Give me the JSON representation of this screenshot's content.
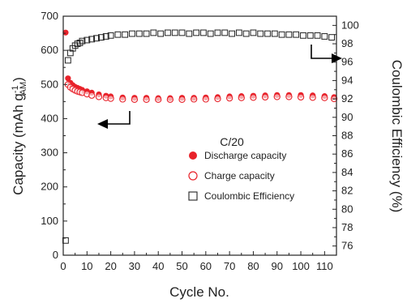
{
  "chart_data": {
    "type": "scatter",
    "xlabel": "Cycle No.",
    "ylabel_left": {
      "pre": "Capacity (mAh g",
      "sup": "-1",
      "sub": "AM",
      "post": ")"
    },
    "ylabel_right": "Coulombic Efficiency (%)",
    "xlim": [
      0,
      115
    ],
    "ylim_left": [
      0,
      700
    ],
    "ylim_right": [
      75,
      101
    ],
    "x_ticks": [
      0,
      10,
      20,
      30,
      40,
      50,
      60,
      70,
      80,
      90,
      100,
      110
    ],
    "x_tick_labels": [
      "0",
      "10",
      "20",
      "30",
      "40",
      "50",
      "60",
      "70",
      "80",
      "90",
      "100",
      "110"
    ],
    "y_left_ticks": [
      0,
      100,
      200,
      300,
      400,
      500,
      600,
      700
    ],
    "y_left_tick_labels": [
      "0",
      "100",
      "200",
      "300",
      "400",
      "500",
      "600",
      "700"
    ],
    "y_right_ticks": [
      76,
      78,
      80,
      82,
      84,
      86,
      88,
      90,
      92,
      94,
      96,
      98,
      100
    ],
    "y_right_tick_labels": [
      "76",
      "78",
      "80",
      "82",
      "84",
      "86",
      "88",
      "90",
      "92",
      "94",
      "96",
      "98",
      "100"
    ],
    "annotation": "C/20",
    "legend_position": "center-right",
    "grid": false,
    "colors": {
      "discharge": "#e8222a",
      "charge": "#e8222a",
      "ce": "#222222",
      "arrow": "#000000"
    },
    "series": [
      {
        "name": "Discharge capacity",
        "marker": "filled-circle",
        "axis": "left",
        "x": [
          1,
          2,
          3,
          4,
          5,
          6,
          7,
          8,
          10,
          12,
          15,
          18,
          20,
          25,
          30,
          35,
          40,
          45,
          50,
          55,
          60,
          65,
          70,
          75,
          80,
          85,
          90,
          95,
          100,
          105,
          110,
          114
        ],
        "y": [
          652,
          518,
          505,
          498,
          493,
          490,
          487,
          484,
          480,
          476,
          471,
          467,
          465,
          462,
          461,
          461,
          460,
          460,
          461,
          461,
          462,
          463,
          465,
          466,
          467,
          468,
          469,
          469,
          469,
          468,
          466,
          463
        ]
      },
      {
        "name": "Charge capacity",
        "marker": "open-circle",
        "axis": "left",
        "x": [
          2,
          3,
          4,
          5,
          6,
          7,
          8,
          10,
          12,
          15,
          18,
          20,
          25,
          30,
          35,
          40,
          45,
          50,
          55,
          60,
          65,
          70,
          75,
          80,
          85,
          90,
          95,
          100,
          105,
          110,
          114
        ],
        "y": [
          500,
          492,
          487,
          483,
          480,
          478,
          476,
          472,
          468,
          464,
          461,
          459,
          457,
          456,
          456,
          456,
          456,
          456,
          457,
          457,
          458,
          460,
          461,
          462,
          463,
          464,
          464,
          463,
          462,
          461,
          458
        ]
      },
      {
        "name": "Coulombic Efficiency",
        "marker": "open-square",
        "axis": "right",
        "x": [
          1,
          2,
          3,
          4,
          5,
          6,
          7,
          8,
          10,
          12,
          14,
          16,
          18,
          20,
          23,
          26,
          29,
          32,
          35,
          38,
          41,
          44,
          47,
          50,
          53,
          56,
          59,
          62,
          65,
          68,
          71,
          74,
          77,
          80,
          83,
          86,
          89,
          92,
          95,
          98,
          101,
          104,
          107,
          110,
          113
        ],
        "y": [
          76.6,
          96.2,
          97.0,
          97.5,
          97.8,
          98.0,
          98.1,
          98.3,
          98.4,
          98.5,
          98.6,
          98.7,
          98.8,
          98.9,
          99.0,
          99.0,
          99.1,
          99.1,
          99.1,
          99.2,
          99.1,
          99.2,
          99.2,
          99.2,
          99.1,
          99.2,
          99.2,
          99.1,
          99.2,
          99.2,
          99.1,
          99.2,
          99.1,
          99.2,
          99.1,
          99.1,
          99.1,
          99.0,
          99.0,
          99.0,
          98.9,
          98.9,
          98.9,
          98.8,
          98.7
        ]
      }
    ]
  }
}
